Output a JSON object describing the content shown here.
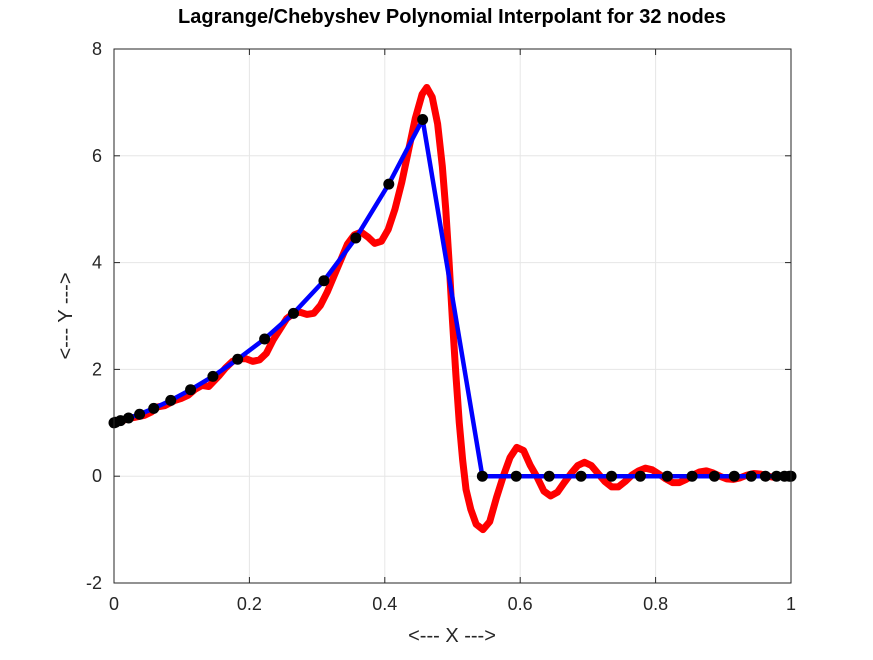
{
  "chart_data": {
    "type": "line",
    "title": "Lagrange/Chebyshev Polynomial Interpolant for 32 nodes",
    "xlabel": "<--- X --->",
    "ylabel": "<--- Y --->",
    "xlim": [
      0,
      1
    ],
    "ylim": [
      -2,
      8
    ],
    "xticks": [
      0,
      0.2,
      0.4,
      0.6,
      0.8,
      1
    ],
    "xtick_labels": [
      "0",
      "0.2",
      "0.4",
      "0.6",
      "0.8",
      "1"
    ],
    "yticks": [
      -2,
      0,
      2,
      4,
      6,
      8
    ],
    "ytick_labels": [
      "-2",
      "0",
      "2",
      "4",
      "6",
      "8"
    ],
    "grid": true,
    "series": [
      {
        "style": "line",
        "color": "#ff0000",
        "points": [
          [
            0.0,
            1.0
          ],
          [
            0.01,
            1.02
          ],
          [
            0.02,
            1.08
          ],
          [
            0.03,
            1.1
          ],
          [
            0.045,
            1.14
          ],
          [
            0.055,
            1.2
          ],
          [
            0.065,
            1.3
          ],
          [
            0.075,
            1.32
          ],
          [
            0.09,
            1.42
          ],
          [
            0.1,
            1.46
          ],
          [
            0.11,
            1.52
          ],
          [
            0.12,
            1.63
          ],
          [
            0.13,
            1.7
          ],
          [
            0.14,
            1.68
          ],
          [
            0.155,
            1.88
          ],
          [
            0.165,
            2.03
          ],
          [
            0.175,
            2.15
          ],
          [
            0.185,
            2.2
          ],
          [
            0.195,
            2.2
          ],
          [
            0.205,
            2.15
          ],
          [
            0.215,
            2.18
          ],
          [
            0.225,
            2.3
          ],
          [
            0.235,
            2.55
          ],
          [
            0.245,
            2.75
          ],
          [
            0.255,
            2.95
          ],
          [
            0.265,
            3.05
          ],
          [
            0.275,
            3.07
          ],
          [
            0.285,
            3.03
          ],
          [
            0.295,
            3.05
          ],
          [
            0.305,
            3.2
          ],
          [
            0.315,
            3.45
          ],
          [
            0.325,
            3.75
          ],
          [
            0.335,
            4.05
          ],
          [
            0.345,
            4.35
          ],
          [
            0.355,
            4.52
          ],
          [
            0.365,
            4.57
          ],
          [
            0.375,
            4.48
          ],
          [
            0.385,
            4.36
          ],
          [
            0.395,
            4.4
          ],
          [
            0.405,
            4.62
          ],
          [
            0.415,
            5.0
          ],
          [
            0.425,
            5.5
          ],
          [
            0.435,
            6.1
          ],
          [
            0.445,
            6.7
          ],
          [
            0.455,
            7.15
          ],
          [
            0.462,
            7.28
          ],
          [
            0.47,
            7.1
          ],
          [
            0.478,
            6.6
          ],
          [
            0.485,
            5.8
          ],
          [
            0.49,
            5.0
          ],
          [
            0.495,
            4.0
          ],
          [
            0.5,
            2.9
          ],
          [
            0.505,
            1.9
          ],
          [
            0.51,
            1.0
          ],
          [
            0.515,
            0.3
          ],
          [
            0.52,
            -0.25
          ],
          [
            0.527,
            -0.62
          ],
          [
            0.535,
            -0.9
          ],
          [
            0.545,
            -1.0
          ],
          [
            0.555,
            -0.85
          ],
          [
            0.565,
            -0.4
          ],
          [
            0.575,
            0.0
          ],
          [
            0.585,
            0.35
          ],
          [
            0.595,
            0.54
          ],
          [
            0.605,
            0.48
          ],
          [
            0.615,
            0.2
          ],
          [
            0.625,
            -0.02
          ],
          [
            0.635,
            -0.28
          ],
          [
            0.645,
            -0.37
          ],
          [
            0.655,
            -0.3
          ],
          [
            0.665,
            -0.12
          ],
          [
            0.675,
            0.05
          ],
          [
            0.685,
            0.2
          ],
          [
            0.695,
            0.26
          ],
          [
            0.705,
            0.2
          ],
          [
            0.715,
            0.05
          ],
          [
            0.725,
            -0.1
          ],
          [
            0.735,
            -0.2
          ],
          [
            0.745,
            -0.2
          ],
          [
            0.755,
            -0.1
          ],
          [
            0.765,
            0.02
          ],
          [
            0.775,
            0.1
          ],
          [
            0.785,
            0.15
          ],
          [
            0.795,
            0.12
          ],
          [
            0.805,
            0.04
          ],
          [
            0.815,
            -0.05
          ],
          [
            0.825,
            -0.12
          ],
          [
            0.835,
            -0.12
          ],
          [
            0.845,
            -0.06
          ],
          [
            0.855,
            0.02
          ],
          [
            0.865,
            0.08
          ],
          [
            0.875,
            0.1
          ],
          [
            0.885,
            0.06
          ],
          [
            0.895,
            0.0
          ],
          [
            0.905,
            -0.05
          ],
          [
            0.915,
            -0.06
          ],
          [
            0.925,
            -0.03
          ],
          [
            0.935,
            0.02
          ],
          [
            0.945,
            0.05
          ],
          [
            0.955,
            0.04
          ],
          [
            0.965,
            0.0
          ],
          [
            0.975,
            -0.02
          ],
          [
            0.985,
            0.0
          ],
          [
            0.995,
            0.01
          ],
          [
            1.0,
            0.0
          ]
        ]
      },
      {
        "style": "line",
        "color": "#0000ff",
        "points": [
          [
            0.0,
            1.0
          ],
          [
            0.0024,
            1.01
          ],
          [
            0.0096,
            1.04
          ],
          [
            0.0214,
            1.09
          ],
          [
            0.0378,
            1.16
          ],
          [
            0.0587,
            1.27
          ],
          [
            0.0838,
            1.42
          ],
          [
            0.1131,
            1.62
          ],
          [
            0.1461,
            1.87
          ],
          [
            0.1827,
            2.19
          ],
          [
            0.2225,
            2.57
          ],
          [
            0.2651,
            3.05
          ],
          [
            0.3101,
            3.66
          ],
          [
            0.3572,
            4.46
          ],
          [
            0.4059,
            5.47
          ],
          [
            0.4559,
            6.68
          ],
          [
            0.5441,
            0.0
          ],
          [
            0.5941,
            0.0
          ],
          [
            0.6428,
            0.0
          ],
          [
            0.6899,
            0.0
          ],
          [
            0.7349,
            0.0
          ],
          [
            0.7775,
            0.0
          ],
          [
            0.8173,
            0.0
          ],
          [
            0.8539,
            0.0
          ],
          [
            0.8869,
            0.0
          ],
          [
            0.9162,
            0.0
          ],
          [
            0.9413,
            0.0
          ],
          [
            0.9622,
            0.0
          ],
          [
            0.9786,
            0.0
          ],
          [
            0.9904,
            0.0
          ],
          [
            0.9976,
            0.0
          ],
          [
            1.0,
            0.0
          ]
        ]
      }
    ],
    "nodes": {
      "color": "#000000",
      "x": [
        0.0,
        0.0024,
        0.0096,
        0.0214,
        0.0378,
        0.0587,
        0.0838,
        0.1131,
        0.1461,
        0.1827,
        0.2225,
        0.2651,
        0.3101,
        0.3572,
        0.4059,
        0.4559,
        0.5441,
        0.5941,
        0.6428,
        0.6899,
        0.7349,
        0.7775,
        0.8173,
        0.8539,
        0.8869,
        0.9162,
        0.9413,
        0.9622,
        0.9786,
        0.9904,
        0.9976,
        1.0
      ],
      "y": [
        1.0,
        1.01,
        1.04,
        1.09,
        1.16,
        1.27,
        1.42,
        1.62,
        1.87,
        2.19,
        2.57,
        3.05,
        3.66,
        4.46,
        5.47,
        6.68,
        0.0,
        0.0,
        0.0,
        0.0,
        0.0,
        0.0,
        0.0,
        0.0,
        0.0,
        0.0,
        0.0,
        0.0,
        0.0,
        0.0,
        0.0,
        0.0
      ]
    }
  }
}
